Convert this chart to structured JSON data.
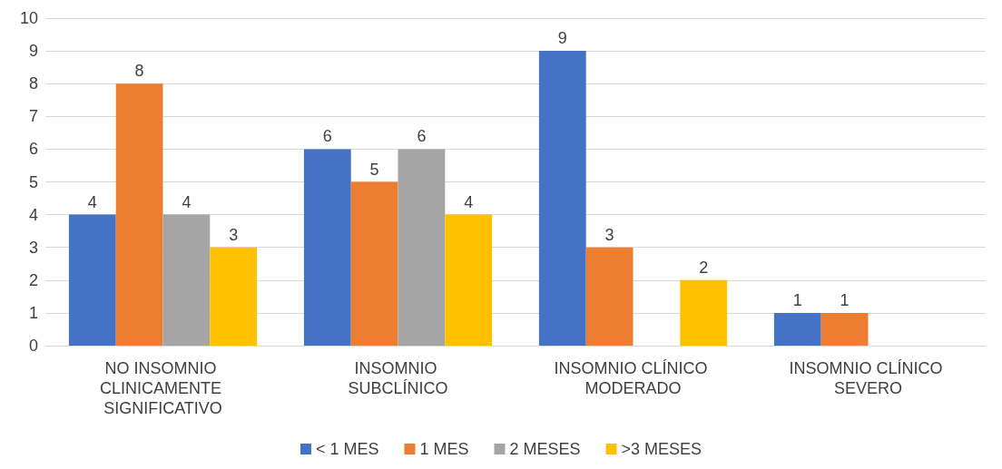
{
  "chart_data": {
    "type": "bar",
    "categories": [
      "NO INSOMNIO CLINICAMENTE SIGNIFICATIVO",
      "INSOMNIO SUBCLÍNICO",
      "INSOMNIO CLÍNICO MODERADO",
      "INSOMNIO CLÍNICO SEVERO"
    ],
    "series": [
      {
        "name": "< 1 MES",
        "color": "#4472c4",
        "values": [
          4,
          6,
          9,
          1
        ]
      },
      {
        "name": "1 MES",
        "color": "#ed7d31",
        "values": [
          8,
          5,
          3,
          1
        ]
      },
      {
        "name": "2 MESES",
        "color": "#a5a5a5",
        "values": [
          4,
          6,
          null,
          null
        ]
      },
      {
        "name": ">3 MESES",
        "color": "#ffc000",
        "values": [
          3,
          4,
          2,
          null
        ]
      }
    ],
    "ylim": [
      0,
      10
    ],
    "yticks": [
      0,
      1,
      2,
      3,
      4,
      5,
      6,
      7,
      8,
      9,
      10
    ],
    "grid": "y",
    "legend": "bottom",
    "data_labels": true
  }
}
